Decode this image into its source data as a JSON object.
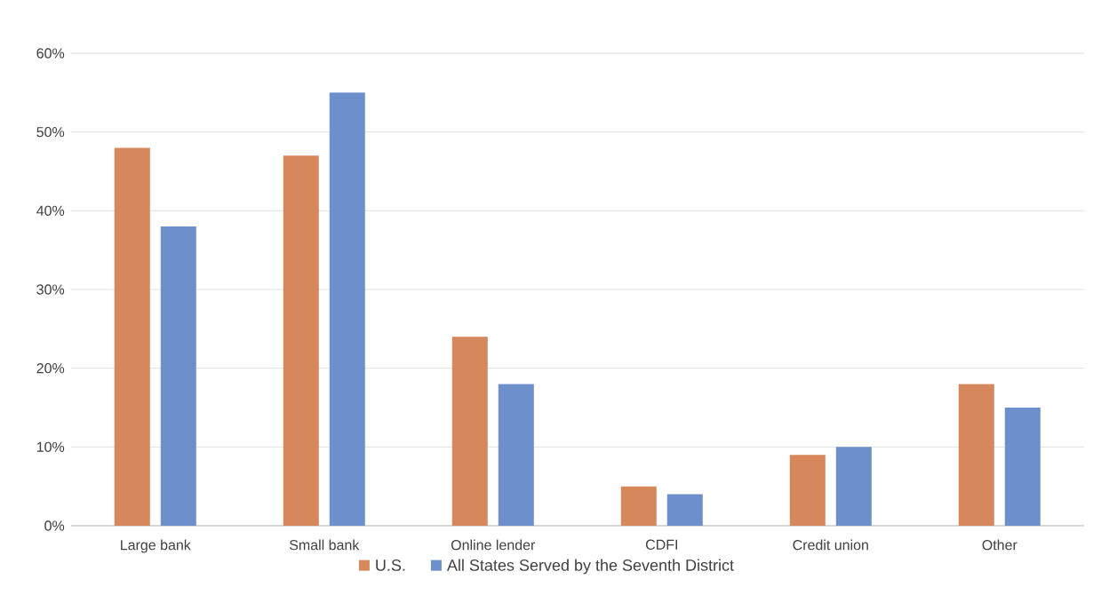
{
  "chart_data": {
    "type": "bar",
    "categories": [
      "Large bank",
      "Small bank",
      "Online lender",
      "CDFI",
      "Credit union",
      "Other"
    ],
    "series": [
      {
        "name": "U.S.",
        "color": "#d6875c",
        "values": [
          48,
          47,
          24,
          5,
          9,
          18
        ]
      },
      {
        "name": "All States Served by the Seventh District",
        "color": "#6d8fcb",
        "values": [
          38,
          55,
          18,
          4,
          10,
          15
        ]
      }
    ],
    "ylim": [
      0,
      60
    ],
    "yticks": [
      {
        "value": 0,
        "label": "0%"
      },
      {
        "value": 10,
        "label": "10%"
      },
      {
        "value": 20,
        "label": "20%"
      },
      {
        "value": 30,
        "label": "30%"
      },
      {
        "value": 40,
        "label": "40%"
      },
      {
        "value": 50,
        "label": "50%"
      },
      {
        "value": 60,
        "label": "60%"
      }
    ],
    "grid": "y",
    "legend": "bottom"
  }
}
